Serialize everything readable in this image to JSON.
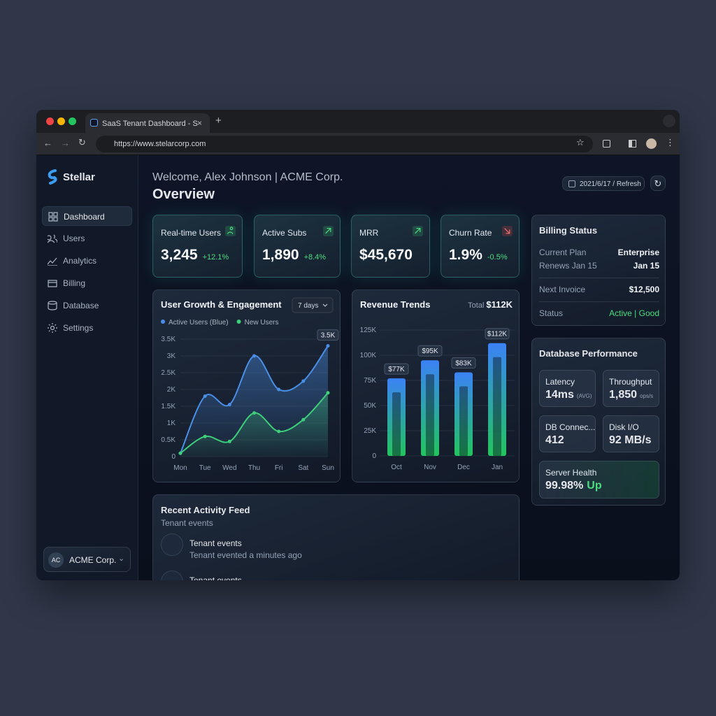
{
  "browser": {
    "tab_title": "SaaS Tenant Dashboard - S",
    "url": "https://www.stelarcorp.com"
  },
  "sidebar": {
    "brand": "Stellar",
    "nav": [
      "Dashboard",
      "Users",
      "Analytics",
      "Billing",
      "Database",
      "Settings"
    ],
    "org": {
      "initials": "AC",
      "name": "ACME Corp."
    }
  },
  "header": {
    "welcome": "Welcome, Alex Johnson | ACME Corp.",
    "title": "Overview",
    "date_button": "2021/6/17 / Refresh"
  },
  "kpis": [
    {
      "label": "Real-time Users",
      "value": "3,245",
      "change": "+12.1%"
    },
    {
      "label": "Active Subs",
      "value": "1,890",
      "change": "+8.4%"
    },
    {
      "label": "MRR",
      "value": "$45,670"
    },
    {
      "label": "Churn Rate",
      "value": "1.9%",
      "change": "-0.5%"
    }
  ],
  "billing": {
    "title": "Billing Status",
    "rows": [
      [
        "Current Plan",
        "Enterprise"
      ],
      [
        "Renews Jan 15",
        "Jan 15"
      ],
      [
        "Next Invoice",
        "$12,500"
      ]
    ],
    "status_label": "Status",
    "status": "Active",
    "health": "Good"
  },
  "database": {
    "title": "Database Performance",
    "metrics": [
      {
        "label": "Latency",
        "value": "14ms",
        "unit": "(AVG)"
      },
      {
        "label": "Throughput",
        "value": "1,850",
        "unit": "ops/s"
      },
      {
        "label": "DB Connec...",
        "value": "412"
      },
      {
        "label": "Disk I/O",
        "value": "92 MB/s"
      },
      {
        "label": "Server Health",
        "value": "99.98%",
        "status": "Up"
      }
    ]
  },
  "activity": {
    "title": "Recent Activity Feed",
    "subtitle": "Tenant events",
    "items": [
      {
        "title": "Tenant events",
        "detail": "Tenant evented a minutes ago"
      },
      {
        "title": "Tenant events"
      }
    ]
  },
  "chart_data": [
    {
      "type": "line",
      "title": "User Growth & Engagement",
      "range": "7 days",
      "annotation": "3.5K",
      "categories": [
        "Mon",
        "Tue",
        "Wed",
        "Thu",
        "Fri",
        "Sat",
        "Sun"
      ],
      "series": [
        {
          "name": "Active Users (Blue)",
          "color": "#4a8fe6",
          "values": [
            100,
            1800,
            1550,
            3000,
            2000,
            2250,
            3300
          ]
        },
        {
          "name": "New Users",
          "color": "#3ecf7a",
          "values": [
            100,
            600,
            450,
            1300,
            750,
            1100,
            1900
          ]
        }
      ],
      "ylim": [
        0,
        3500
      ],
      "yticks": [
        0,
        {
          "value": 500,
          "label": "0.5K"
        },
        {
          "value": 1000,
          "label": "1K"
        },
        {
          "value": 1500,
          "label": "1.5K"
        },
        {
          "value": 2000,
          "label": "2K"
        },
        {
          "value": 2500,
          "label": "2.5K"
        },
        {
          "value": 3000,
          "label": "3K"
        },
        {
          "value": 3500,
          "label": "3.5K"
        }
      ],
      "grid": true
    },
    {
      "type": "bar",
      "title": "Revenue Trends",
      "total_label": "Total",
      "total": "$112K",
      "categories": [
        "Oct",
        "Nov",
        "Dec",
        "Jan"
      ],
      "values": [
        77000,
        95000,
        83000,
        112000
      ],
      "value_labels": [
        "$77K",
        "$95K",
        "$83K",
        "$112K"
      ],
      "color": "#3b82f6",
      "ylim": [
        0,
        125000
      ],
      "yticks": [
        0,
        {
          "value": 25000,
          "label": "25K"
        },
        {
          "value": 50000,
          "label": "50K"
        },
        {
          "value": 75000,
          "label": "75K"
        },
        {
          "value": 100000,
          "label": "100K"
        },
        {
          "value": 125000,
          "label": "125K"
        }
      ],
      "grid": true
    }
  ]
}
